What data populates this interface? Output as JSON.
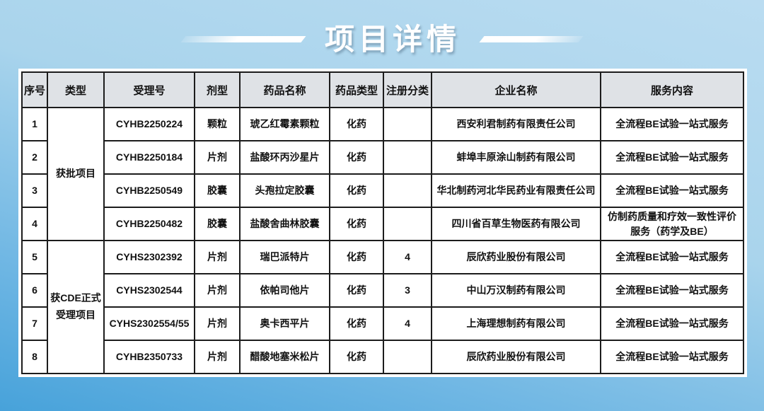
{
  "page_title": "项目详情",
  "colors": {
    "background_top": "#badcf1",
    "background_bottom": "#47a2da",
    "table_border": "#1c1c1c",
    "header_bg": "#dfe2e6",
    "cell_bg": "#ffffff",
    "title_text": "#ffffff"
  },
  "table": {
    "headers": [
      "序号",
      "类型",
      "受理号",
      "剂型",
      "药品名称",
      "药品类型",
      "注册分类",
      "企业名称",
      "服务内容"
    ],
    "type_groups": [
      {
        "label": "获批项目",
        "rowspan": 4
      },
      {
        "label": "获CDE正式受理项目",
        "rowspan": 4
      }
    ],
    "rows": [
      {
        "no": "1",
        "acceptance_no": "CYHB2250224",
        "dosage_form": "颗粒",
        "drug_name": "琥乙红霉素颗粒",
        "drug_type": "化药",
        "reg_class": "",
        "company": "西安利君制药有限责任公司",
        "service": "全流程BE试验一站式服务"
      },
      {
        "no": "2",
        "acceptance_no": "CYHB2250184",
        "dosage_form": "片剂",
        "drug_name": "盐酸环丙沙星片",
        "drug_type": "化药",
        "reg_class": "",
        "company": "蚌埠丰原涂山制药有限公司",
        "service": "全流程BE试验一站式服务"
      },
      {
        "no": "3",
        "acceptance_no": "CYHB2250549",
        "dosage_form": "胶囊",
        "drug_name": "头孢拉定胶囊",
        "drug_type": "化药",
        "reg_class": "",
        "company": "华北制药河北华民药业有限责任公司",
        "service": "全流程BE试验一站式服务"
      },
      {
        "no": "4",
        "acceptance_no": "CYHB2250482",
        "dosage_form": "胶囊",
        "drug_name": "盐酸舍曲林胶囊",
        "drug_type": "化药",
        "reg_class": "",
        "company": "四川省百草生物医药有限公司",
        "service": "仿制药质量和疗效一致性评价服务（药学及BE）"
      },
      {
        "no": "5",
        "acceptance_no": "CYHS2302392",
        "dosage_form": "片剂",
        "drug_name": "瑞巴派特片",
        "drug_type": "化药",
        "reg_class": "4",
        "company": "辰欣药业股份有限公司",
        "service": "全流程BE试验一站式服务"
      },
      {
        "no": "6",
        "acceptance_no": "CYHS2302544",
        "dosage_form": "片剂",
        "drug_name": "依帕司他片",
        "drug_type": "化药",
        "reg_class": "3",
        "company": "中山万汉制药有限公司",
        "service": "全流程BE试验一站式服务"
      },
      {
        "no": "7",
        "acceptance_no": "CYHS2302554/55",
        "dosage_form": "片剂",
        "drug_name": "奥卡西平片",
        "drug_type": "化药",
        "reg_class": "4",
        "company": "上海理想制药有限公司",
        "service": "全流程BE试验一站式服务"
      },
      {
        "no": "8",
        "acceptance_no": "CYHB2350733",
        "dosage_form": "片剂",
        "drug_name": "醋酸地塞米松片",
        "drug_type": "化药",
        "reg_class": "",
        "company": "辰欣药业股份有限公司",
        "service": "全流程BE试验一站式服务"
      }
    ]
  }
}
